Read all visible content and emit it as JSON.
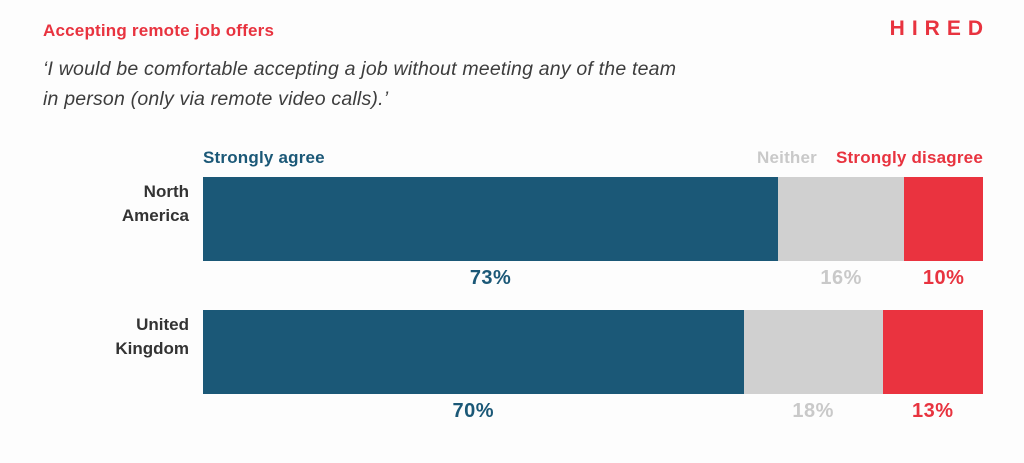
{
  "header": {
    "title": "Accepting remote job offers",
    "subtitle_line1": "‘I would be comfortable accepting a job without meeting any of the team",
    "subtitle_line2": "in person (only via remote video calls).’",
    "brand": "HIRED"
  },
  "colors": {
    "accent_red": "#e8333f",
    "bar_blue": "#1b5877",
    "bar_gray": "#d0d0d0",
    "bar_red": "#ea333f",
    "text_dark": "#3b3b3b",
    "gray_text": "#c9c9c9"
  },
  "chart_data": {
    "type": "bar",
    "orientation": "horizontal",
    "stacked": true,
    "title": "Accepting remote job offers",
    "subtitle": "‘I would be comfortable accepting a job without meeting any of the team in person (only via remote video calls).’",
    "categories": [
      "North America",
      "United Kingdom"
    ],
    "series": [
      {
        "name": "Strongly agree",
        "color": "#1b5877",
        "values": [
          73,
          70
        ]
      },
      {
        "name": "Neither",
        "color": "#d0d0d0",
        "values": [
          16,
          18
        ]
      },
      {
        "name": "Strongly disagree",
        "color": "#ea333f",
        "values": [
          10,
          13
        ]
      }
    ],
    "value_labels": [
      [
        "73%",
        "16%",
        "10%"
      ],
      [
        "70%",
        "18%",
        "13%"
      ]
    ],
    "value_label_colors": [
      "#1b5877",
      "#c9c9c9",
      "#e8333f"
    ],
    "units": "percent",
    "legend_position": "top",
    "xlim": [
      0,
      100
    ],
    "grid": false
  }
}
